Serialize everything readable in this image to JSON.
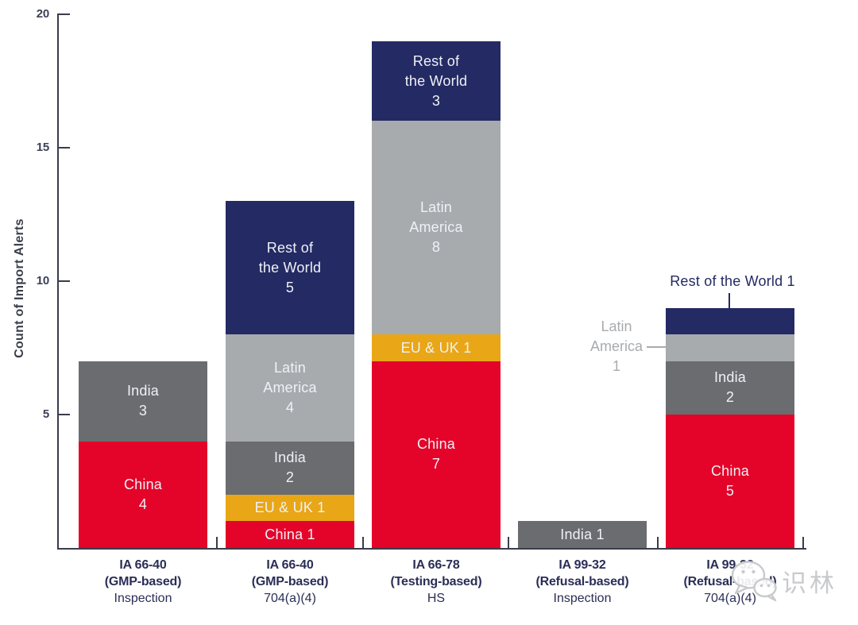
{
  "chart_data": {
    "type": "bar",
    "stacked": true,
    "title": "",
    "ylabel": "Count of Import Alerts",
    "xlabel": "",
    "ylim": [
      0,
      20
    ],
    "yticks": [
      5,
      10,
      15,
      20
    ],
    "grid": false,
    "legend": "none",
    "region_colors": {
      "China": "#e40429",
      "EU & UK": "#e9a616",
      "India": "#6b6c70",
      "Latin America": "#a8abae",
      "Rest of the World": "#242a63"
    },
    "categories": [
      {
        "line1": "IA 66-40",
        "line2": "(GMP-based)",
        "line3": "Inspection"
      },
      {
        "line1": "IA 66-40",
        "line2": "(GMP-based)",
        "line3": "704(a)(4)"
      },
      {
        "line1": "IA 66-78",
        "line2": "(Testing-based)",
        "line3": "HS"
      },
      {
        "line1": "IA 99-32",
        "line2": "(Refusal-based)",
        "line3": "Inspection"
      },
      {
        "line1": "IA 99-32",
        "line2": "(Refusal-based)",
        "line3": "704(a)(4)"
      }
    ],
    "bars": [
      {
        "total": 7,
        "segments": [
          {
            "region": "China",
            "value": 4,
            "label_lines": [
              "China",
              "4"
            ]
          },
          {
            "region": "India",
            "value": 3,
            "label_lines": [
              "India",
              "3"
            ]
          }
        ]
      },
      {
        "total": 13,
        "segments": [
          {
            "region": "China",
            "value": 1,
            "label_lines": [
              "China 1"
            ]
          },
          {
            "region": "EU & UK",
            "value": 1,
            "label_lines": [
              "EU & UK 1"
            ]
          },
          {
            "region": "India",
            "value": 2,
            "label_lines": [
              "India",
              "2"
            ]
          },
          {
            "region": "Latin America",
            "value": 4,
            "label_lines": [
              "Latin",
              "America",
              "4"
            ]
          },
          {
            "region": "Rest of the World",
            "value": 5,
            "label_lines": [
              "Rest of",
              "the World",
              "5"
            ]
          }
        ]
      },
      {
        "total": 19,
        "segments": [
          {
            "region": "China",
            "value": 7,
            "label_lines": [
              "China",
              "7"
            ]
          },
          {
            "region": "EU & UK",
            "value": 1,
            "label_lines": [
              "EU & UK 1"
            ]
          },
          {
            "region": "Latin America",
            "value": 8,
            "label_lines": [
              "Latin",
              "America",
              "8"
            ]
          },
          {
            "region": "Rest of the World",
            "value": 3,
            "label_lines": [
              "Rest of",
              "the World",
              "3"
            ]
          }
        ]
      },
      {
        "total": 1,
        "segments": [
          {
            "region": "India",
            "value": 1,
            "label_lines": [
              "India 1"
            ]
          }
        ]
      },
      {
        "total": 9,
        "segments": [
          {
            "region": "China",
            "value": 5,
            "label_lines": [
              "China",
              "5"
            ]
          },
          {
            "region": "India",
            "value": 2,
            "label_lines": [
              "India",
              "2"
            ]
          },
          {
            "region": "Latin America",
            "value": 1,
            "label_lines": []
          },
          {
            "region": "Rest of the World",
            "value": 1,
            "label_lines": []
          }
        ]
      }
    ],
    "callouts": {
      "latin_america": {
        "lines": [
          "Latin",
          "America",
          "1"
        ],
        "color": "#a8abae"
      },
      "rest_of_world": {
        "text": "Rest of the World 1",
        "color": "#242a63"
      }
    }
  },
  "axis_style": {
    "line_color": "#3a3d49",
    "tick_label_color": "#3c4057",
    "category_label_color": "#2b2e55"
  },
  "watermark": {
    "icon": "wechat-chat-bubbles-icon",
    "text": "识林",
    "color": "#c9cacc"
  }
}
